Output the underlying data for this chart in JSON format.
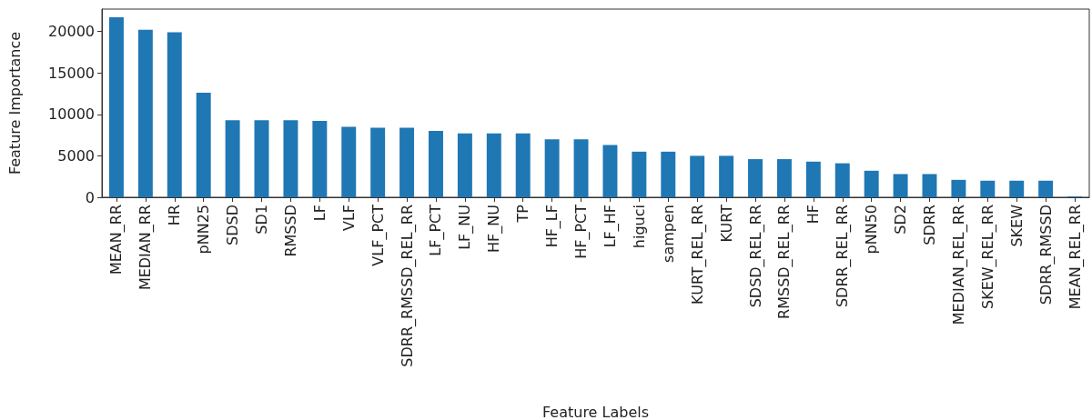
{
  "chart_data": {
    "type": "bar",
    "xlabel": "Feature Labels",
    "ylabel": "Feature Importance",
    "categories": [
      "MEAN_RR",
      "MEDIAN_RR",
      "HR",
      "pNN25",
      "SDSD",
      "SD1",
      "RMSSD",
      "LF",
      "VLF",
      "VLF_PCT",
      "SDRR_RMSSD_REL_RR",
      "LF_PCT",
      "LF_NU",
      "HF_NU",
      "TP",
      "HF_LF",
      "HF_PCT",
      "LF_HF",
      "higuci",
      "sampen",
      "KURT_REL_RR",
      "KURT",
      "SDSD_REL_RR",
      "RMSSD_REL_RR",
      "HF",
      "SDRR_REL_RR",
      "pNN50",
      "SD2",
      "SDRR",
      "MEDIAN_REL_RR",
      "SKEW_REL_RR",
      "SKEW",
      "SDRR_RMSSD",
      "MEAN_REL_RR"
    ],
    "values": [
      21700,
      20200,
      19900,
      12600,
      9300,
      9300,
      9300,
      9200,
      8500,
      8400,
      8400,
      8000,
      7700,
      7700,
      7700,
      7000,
      7000,
      6300,
      5500,
      5500,
      5000,
      5000,
      4600,
      4600,
      4300,
      4100,
      3200,
      2800,
      2800,
      2100,
      2000,
      2000,
      2000,
      100
    ],
    "color": "#1f77b4",
    "ylim": [
      0,
      22700
    ],
    "yticks": [
      0,
      5000,
      10000,
      15000,
      20000
    ],
    "grid": false
  }
}
